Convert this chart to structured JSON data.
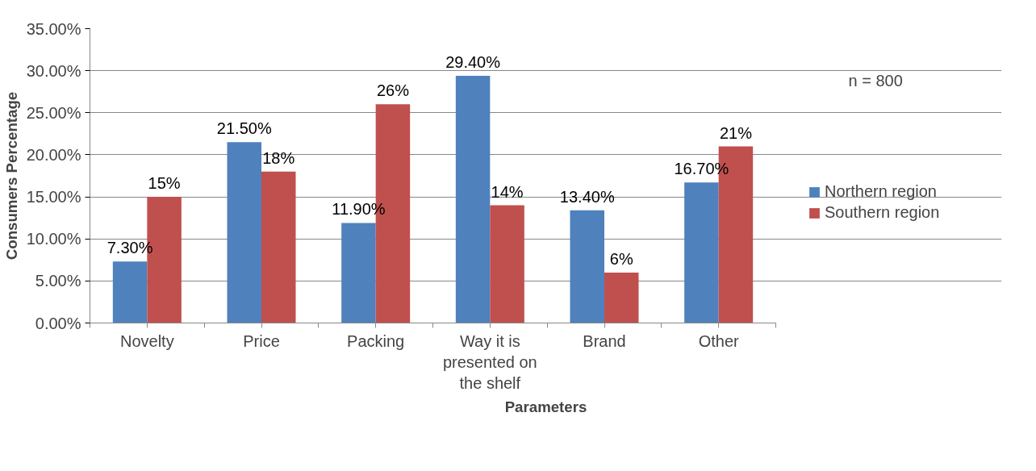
{
  "chart_data": {
    "type": "bar",
    "xlabel": "Parameters",
    "ylabel": "Consumers Percentage",
    "categories": [
      "Novelty",
      "Price",
      "Packing",
      "Way it is presented on the shelf",
      "Brand",
      "Other"
    ],
    "series": [
      {
        "name": "Northern region",
        "color": "#4f81bd",
        "values": [
          7.3,
          21.5,
          11.9,
          29.4,
          13.4,
          16.7
        ],
        "value_labels": [
          "7.30%",
          "21.50%",
          "11.90%",
          "29.40%",
          "13.40%",
          "16.70%"
        ]
      },
      {
        "name": "Southern region",
        "color": "#c0504d",
        "values": [
          15,
          18,
          26,
          14,
          6,
          21
        ],
        "value_labels": [
          "15%",
          "18%",
          "26%",
          "14%",
          "6%",
          "21%"
        ]
      }
    ],
    "ylim": [
      0,
      35
    ],
    "yticks": [
      {
        "value": 0,
        "label": "0.00%"
      },
      {
        "value": 5,
        "label": "5.00%"
      },
      {
        "value": 10,
        "label": "10.00%"
      },
      {
        "value": 15,
        "label": "15.00%"
      },
      {
        "value": 20,
        "label": "20.00%"
      },
      {
        "value": 25,
        "label": "25.00%"
      },
      {
        "value": 30,
        "label": "30.00%"
      },
      {
        "value": 35,
        "label": "35.00%"
      }
    ],
    "grid": "y",
    "legend": "right",
    "annotations": [
      "n = 800"
    ]
  }
}
